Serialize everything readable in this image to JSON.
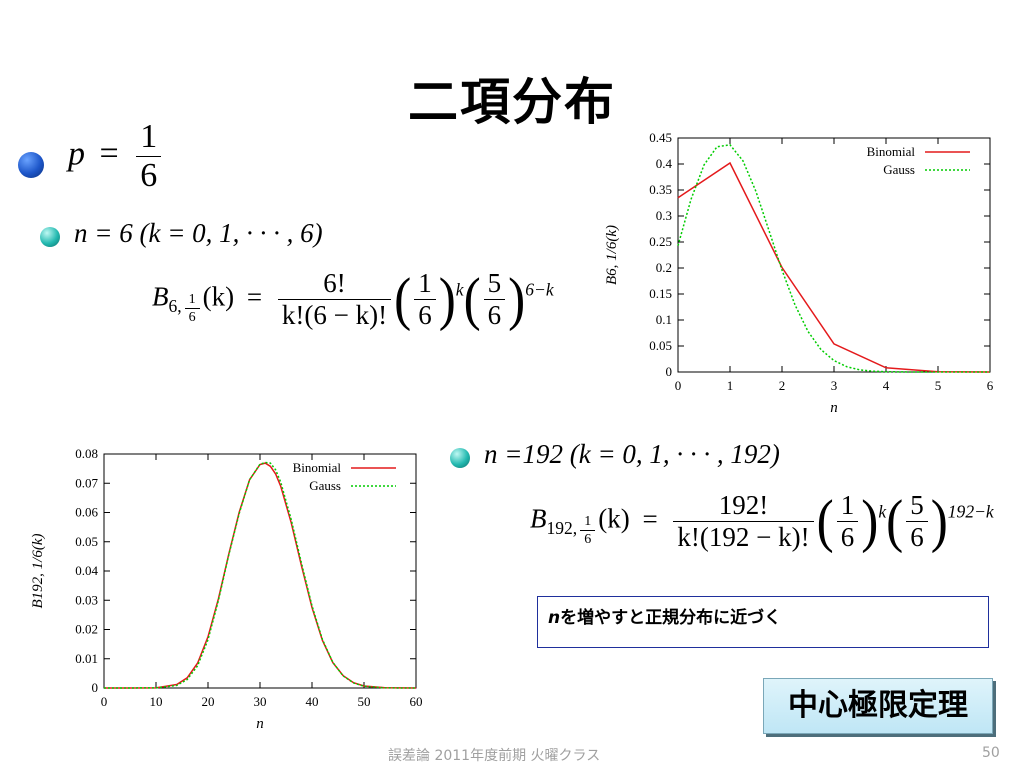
{
  "slide": {
    "title": "二項分布",
    "bullet1": {
      "var": "p",
      "eq": "=",
      "num": "1",
      "den": "6"
    },
    "bullet2": {
      "cond": "n = 6 (k = 0, 1, · · · , 6)",
      "lhs_B": "B",
      "lhs_sub": "6,",
      "lhs_arg": "(k)",
      "eq": "=",
      "num": "6!",
      "den": "k!(6 − k)!",
      "p_num": "1",
      "p_den": "6",
      "p_exp": "k",
      "q_num": "5",
      "q_den": "6",
      "q_exp": "6−k"
    },
    "bullet3": {
      "cond": "n =192 (k = 0, 1, · · · , 192)",
      "lhs_B": "B",
      "lhs_sub": "192,",
      "lhs_arg": "(k)",
      "eq": "=",
      "num": "192!",
      "den": "k!(192 − k)!",
      "p_num": "1",
      "p_den": "6",
      "p_exp": "k",
      "q_num": "5",
      "q_den": "6",
      "q_exp": "192−k"
    },
    "note": {
      "var": "n",
      "text": "を増やすと正規分布に近づく"
    },
    "clt": "中心極限定理",
    "footer": "誤差論  2011年度前期  火曜クラス",
    "page": "50"
  },
  "colors": {
    "binomial": "#e41a1c",
    "gauss": "#00cc00",
    "note_border": "#1f2f9c",
    "footer": "#a0a0a0"
  },
  "chart_data": [
    {
      "type": "line",
      "xlabel": "n",
      "ylabel": "B6, 1/6(k)",
      "xlim": [
        0,
        6
      ],
      "ylim": [
        0,
        0.45
      ],
      "xticks": [
        0,
        1,
        2,
        3,
        4,
        5,
        6
      ],
      "yticks": [
        0,
        0.05,
        0.1,
        0.15,
        0.2,
        0.25,
        0.3,
        0.35,
        0.4,
        0.45
      ],
      "legend": "top-right",
      "series": [
        {
          "name": "Binomial",
          "x": [
            0,
            1,
            2,
            3,
            4,
            5,
            6
          ],
          "y": [
            0.335,
            0.402,
            0.201,
            0.054,
            0.008,
            0.0006,
            2e-05
          ]
        },
        {
          "name": "Gauss",
          "x": [
            0,
            0.25,
            0.5,
            0.75,
            1,
            1.25,
            1.5,
            1.75,
            2,
            2.25,
            2.5,
            2.75,
            3,
            3.25,
            3.5,
            3.75,
            4,
            4.5,
            5,
            5.5,
            6
          ],
          "y": [
            0.243,
            0.332,
            0.398,
            0.433,
            0.437,
            0.406,
            0.347,
            0.272,
            0.196,
            0.129,
            0.078,
            0.043,
            0.022,
            0.01,
            0.004,
            0.0015,
            0.0005,
            4e-05,
            0.0,
            0.0,
            0.0
          ]
        }
      ]
    },
    {
      "type": "line",
      "xlabel": "n",
      "ylabel": "B192, 1/6(k)",
      "xlim": [
        0,
        60
      ],
      "ylim": [
        0,
        0.08
      ],
      "xticks": [
        0,
        10,
        20,
        30,
        40,
        50,
        60
      ],
      "yticks": [
        0,
        0.01,
        0.02,
        0.03,
        0.04,
        0.05,
        0.06,
        0.07,
        0.08
      ],
      "legend": "top-right",
      "series": [
        {
          "name": "Binomial",
          "x": [
            0,
            10,
            14,
            16,
            18,
            20,
            22,
            24,
            26,
            28,
            30,
            31,
            32,
            33,
            34,
            36,
            38,
            40,
            42,
            44,
            46,
            48,
            50,
            54,
            60
          ],
          "y": [
            0,
            5e-05,
            0.0012,
            0.0035,
            0.0085,
            0.0175,
            0.0305,
            0.0458,
            0.0601,
            0.0712,
            0.0764,
            0.0769,
            0.0758,
            0.0732,
            0.0689,
            0.0565,
            0.0416,
            0.0275,
            0.0163,
            0.0087,
            0.0042,
            0.0018,
            0.0007,
            0.0001,
            0
          ]
        },
        {
          "name": "Gauss",
          "x": [
            0,
            10,
            14,
            16,
            18,
            20,
            22,
            24,
            26,
            28,
            30,
            31,
            32,
            33,
            34,
            36,
            38,
            40,
            42,
            44,
            46,
            48,
            50,
            54,
            60
          ],
          "y": [
            0,
            3e-05,
            0.0009,
            0.0029,
            0.0076,
            0.0165,
            0.0299,
            0.0455,
            0.0597,
            0.0712,
            0.0765,
            0.0771,
            0.0769,
            0.0746,
            0.0703,
            0.0576,
            0.0425,
            0.0281,
            0.0166,
            0.0088,
            0.0041,
            0.0017,
            0.0006,
            5e-05,
            0
          ]
        }
      ]
    }
  ]
}
